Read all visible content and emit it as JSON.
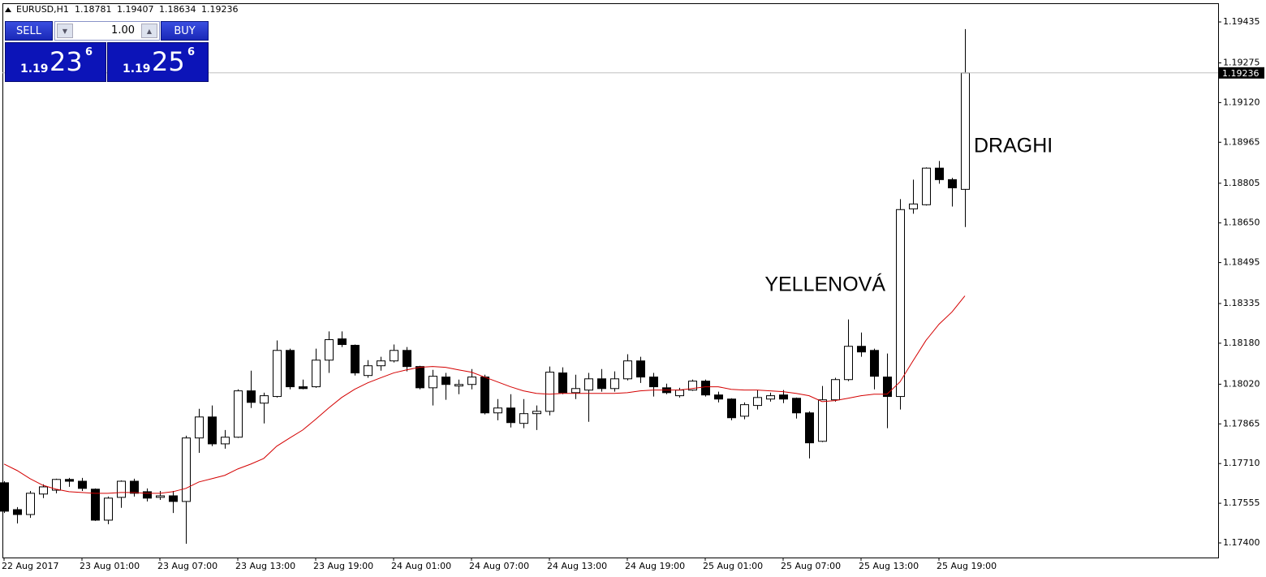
{
  "chart_data": {
    "type": "candlestick",
    "symbol": "EURUSD,H1",
    "categories": [
      "22 Aug 2017",
      null,
      null,
      null,
      null,
      null,
      "23 Aug 01:00",
      null,
      null,
      null,
      null,
      null,
      "23 Aug 07:00",
      null,
      null,
      null,
      null,
      null,
      "23 Aug 13:00",
      null,
      null,
      null,
      null,
      null,
      "23 Aug 19:00",
      null,
      null,
      null,
      null,
      null,
      "24 Aug 01:00",
      null,
      null,
      null,
      null,
      null,
      "24 Aug 07:00",
      null,
      null,
      null,
      null,
      null,
      "24 Aug 13:00",
      null,
      null,
      null,
      null,
      null,
      "24 Aug 19:00",
      null,
      null,
      null,
      null,
      null,
      "25 Aug 01:00",
      null,
      null,
      null,
      null,
      null,
      "25 Aug 07:00",
      null,
      null,
      null,
      null,
      null,
      "25 Aug 13:00",
      null,
      null,
      null,
      null,
      null,
      "25 Aug 19:00",
      null,
      null
    ],
    "open": [
      1.17635,
      1.1753,
      1.17511,
      1.17591,
      1.17606,
      1.17648,
      1.17641,
      1.1761,
      1.17489,
      1.17578,
      1.17641,
      1.176,
      1.17578,
      1.17584,
      1.17562,
      1.1781,
      1.17892,
      1.17787,
      1.17813,
      1.17994,
      1.17946,
      1.17972,
      1.18152,
      1.1801,
      1.1801,
      1.18114,
      1.18197,
      1.18172,
      1.18054,
      1.18092,
      1.18111,
      1.18152,
      1.18089,
      1.18006,
      1.18048,
      1.18013,
      1.18019,
      1.18048,
      1.17908,
      1.17927,
      1.17867,
      1.17905,
      1.17914,
      1.18064,
      1.17987,
      1.17997,
      1.18041,
      1.18003,
      1.18041,
      1.18111,
      1.18048,
      1.18006,
      1.17975,
      1.17997,
      1.18032,
      1.17978,
      1.17962,
      1.17895,
      1.17937,
      1.17962,
      1.17978,
      1.17965,
      1.17908,
      1.17797,
      1.17959,
      1.18038,
      1.18168,
      1.18152,
      1.18048,
      1.17972,
      1.18705,
      1.18721,
      1.18864,
      1.18819,
      1.18781
    ],
    "high": [
      1.17641,
      1.1754,
      1.17603,
      1.17629,
      1.17651,
      1.17654,
      1.17654,
      1.17613,
      1.17581,
      1.17644,
      1.17651,
      1.17613,
      1.17603,
      1.17603,
      1.17819,
      1.17924,
      1.17937,
      1.17841,
      1.18,
      1.18073,
      1.17987,
      1.18191,
      1.18159,
      1.18038,
      1.18159,
      1.18226,
      1.18226,
      1.18175,
      1.18114,
      1.18127,
      1.18175,
      1.18165,
      1.18092,
      1.18076,
      1.18064,
      1.18038,
      1.18079,
      1.18057,
      1.17962,
      1.17981,
      1.17962,
      1.17937,
      1.18089,
      1.18086,
      1.18057,
      1.18064,
      1.18079,
      1.1807,
      1.18137,
      1.18127,
      1.18064,
      1.18022,
      1.18006,
      1.18038,
      1.18038,
      1.17991,
      1.17965,
      1.17949,
      1.17997,
      1.17987,
      1.17997,
      1.17968,
      1.17914,
      1.18013,
      1.18045,
      1.18273,
      1.18222,
      1.18159,
      1.1814,
      1.18743,
      1.18819,
      1.18867,
      1.18892,
      1.18826,
      1.19407
    ],
    "low": [
      1.17517,
      1.17476,
      1.17498,
      1.17575,
      1.17594,
      1.17619,
      1.17603,
      1.17486,
      1.17473,
      1.17537,
      1.17581,
      1.17562,
      1.17568,
      1.17517,
      1.17397,
      1.17752,
      1.17778,
      1.17768,
      1.1781,
      1.17927,
      1.17867,
      1.17968,
      1.18,
      1.18,
      1.18006,
      1.18064,
      1.18165,
      1.18054,
      1.18045,
      1.18073,
      1.18105,
      1.1807,
      1.18,
      1.17937,
      1.17959,
      1.17981,
      1.18,
      1.17902,
      1.17879,
      1.17851,
      1.17848,
      1.17841,
      1.17898,
      1.17981,
      1.17962,
      1.17873,
      1.17991,
      1.17991,
      1.18035,
      1.18025,
      1.17972,
      1.17981,
      1.17968,
      1.17994,
      1.17972,
      1.17949,
      1.17879,
      1.17883,
      1.17921,
      1.17952,
      1.17946,
      1.17886,
      1.1773,
      1.17794,
      1.17952,
      1.18032,
      1.18127,
      1.18,
      1.17848,
      1.17921,
      1.18686,
      1.18718,
      1.18803,
      1.18714,
      1.18634
    ],
    "close": [
      1.17524,
      1.17511,
      1.17594,
      1.17619,
      1.17648,
      1.17641,
      1.17613,
      1.17489,
      1.17575,
      1.17641,
      1.17594,
      1.17575,
      1.17584,
      1.17562,
      1.1781,
      1.17892,
      1.17787,
      1.17813,
      1.17994,
      1.17949,
      1.17975,
      1.18152,
      1.1801,
      1.18003,
      1.18114,
      1.18194,
      1.18175,
      1.18064,
      1.18092,
      1.18111,
      1.18152,
      1.18089,
      1.18006,
      1.18051,
      1.18019,
      1.18019,
      1.18048,
      1.17908,
      1.17927,
      1.1787,
      1.17905,
      1.17914,
      1.18067,
      1.17987,
      1.18003,
      1.18041,
      1.18003,
      1.18041,
      1.18111,
      1.18048,
      1.1801,
      1.17987,
      1.17997,
      1.18032,
      1.17978,
      1.17962,
      1.17889,
      1.1794,
      1.17968,
      1.17975,
      1.17962,
      1.17908,
      1.17791,
      1.17959,
      1.18038,
      1.18168,
      1.18146,
      1.18051,
      1.17972,
      1.18702,
      1.18724,
      1.18864,
      1.18819,
      1.18787,
      1.19236
    ],
    "ma": {
      "color": "#d40000",
      "values": [
        1.17708,
        1.17683,
        1.17651,
        1.17625,
        1.1761,
        1.176,
        1.17597,
        1.17594,
        1.17594,
        1.17597,
        1.17597,
        1.17594,
        1.17594,
        1.176,
        1.17613,
        1.17638,
        1.17651,
        1.17664,
        1.17689,
        1.17708,
        1.1773,
        1.17778,
        1.1781,
        1.17841,
        1.17883,
        1.17927,
        1.17968,
        1.18,
        1.18025,
        1.18045,
        1.18064,
        1.18076,
        1.18086,
        1.18089,
        1.18086,
        1.18076,
        1.18067,
        1.18048,
        1.18029,
        1.1801,
        1.17994,
        1.17984,
        1.17981,
        1.17984,
        1.17984,
        1.17984,
        1.17984,
        1.17984,
        1.17987,
        1.17994,
        1.17997,
        1.17997,
        1.17997,
        1.18003,
        1.1801,
        1.1801,
        1.18,
        1.17997,
        1.17997,
        1.17994,
        1.17991,
        1.17984,
        1.17975,
        1.17952,
        1.17956,
        1.17965,
        1.17975,
        1.17981,
        1.17981,
        1.18029,
        1.18111,
        1.18191,
        1.18254,
        1.18302,
        1.18365
      ]
    },
    "ylim": [
      1.17343,
      1.19508
    ],
    "yticks": [
      1.19435,
      1.19275,
      {
        "value": 1.1912,
        "label": "1.19120"
      },
      1.18965,
      1.18805,
      {
        "value": 1.1865,
        "label": "1.18650"
      },
      1.18495,
      1.18335,
      {
        "value": 1.1818,
        "label": "1.18180"
      },
      {
        "value": 1.1802,
        "label": "1.18020"
      },
      1.17865,
      {
        "value": 1.1771,
        "label": "1.17710"
      },
      1.17555,
      {
        "value": 1.174,
        "label": "1.17400"
      }
    ],
    "annotations": [
      {
        "text": "YELLENOVÁ",
        "index": 55
      },
      {
        "text": "DRAGHI",
        "index": 74
      }
    ]
  },
  "trade_panel": {
    "sell": "SELL",
    "buy": "BUY",
    "lot": "1.00",
    "sell_price": {
      "big": "1.19",
      "pips": "23",
      "point": "6"
    },
    "buy_price": {
      "big": "1.19",
      "pips": "25",
      "point": "6"
    }
  }
}
